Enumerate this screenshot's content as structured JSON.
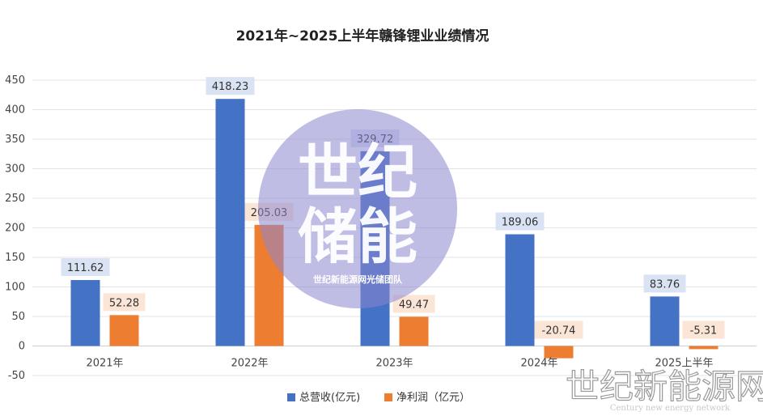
{
  "chart_data": {
    "type": "bar",
    "title": "2021年~2025上半年赣锋锂业业绩情况",
    "categories": [
      "2021年",
      "2022年",
      "2023年",
      "2024年",
      "2025上半年"
    ],
    "series": [
      {
        "name": "总营收(亿元)",
        "color": "#4472C4",
        "label_bg": "#DAE3F3",
        "values": [
          111.62,
          418.23,
          329.72,
          189.06,
          83.76
        ],
        "labels": [
          "111.62",
          "418.23",
          "329.72",
          "189.06",
          "83.76"
        ]
      },
      {
        "name": "净利润（亿元）",
        "color": "#ED7D31",
        "label_bg": "#FBE5D6",
        "values": [
          52.28,
          205.03,
          49.47,
          -20.74,
          -5.31
        ],
        "labels": [
          "52.28",
          "205.03",
          "49.47",
          "-20.74",
          "-5.31"
        ]
      }
    ],
    "ylim": [
      -50,
      450
    ],
    "yticks": [
      -50,
      0,
      50,
      100,
      150,
      200,
      250,
      300,
      350,
      400,
      450
    ],
    "grid": true,
    "legend_position": "bottom"
  },
  "watermark": {
    "line1": "世纪",
    "line2": "储能",
    "subtitle": "世纪新能源网光储团队",
    "color": "#8D86D0"
  },
  "brand": {
    "logo_text": "世纪新能源网",
    "logo_subtitle": "Century new energy network"
  }
}
